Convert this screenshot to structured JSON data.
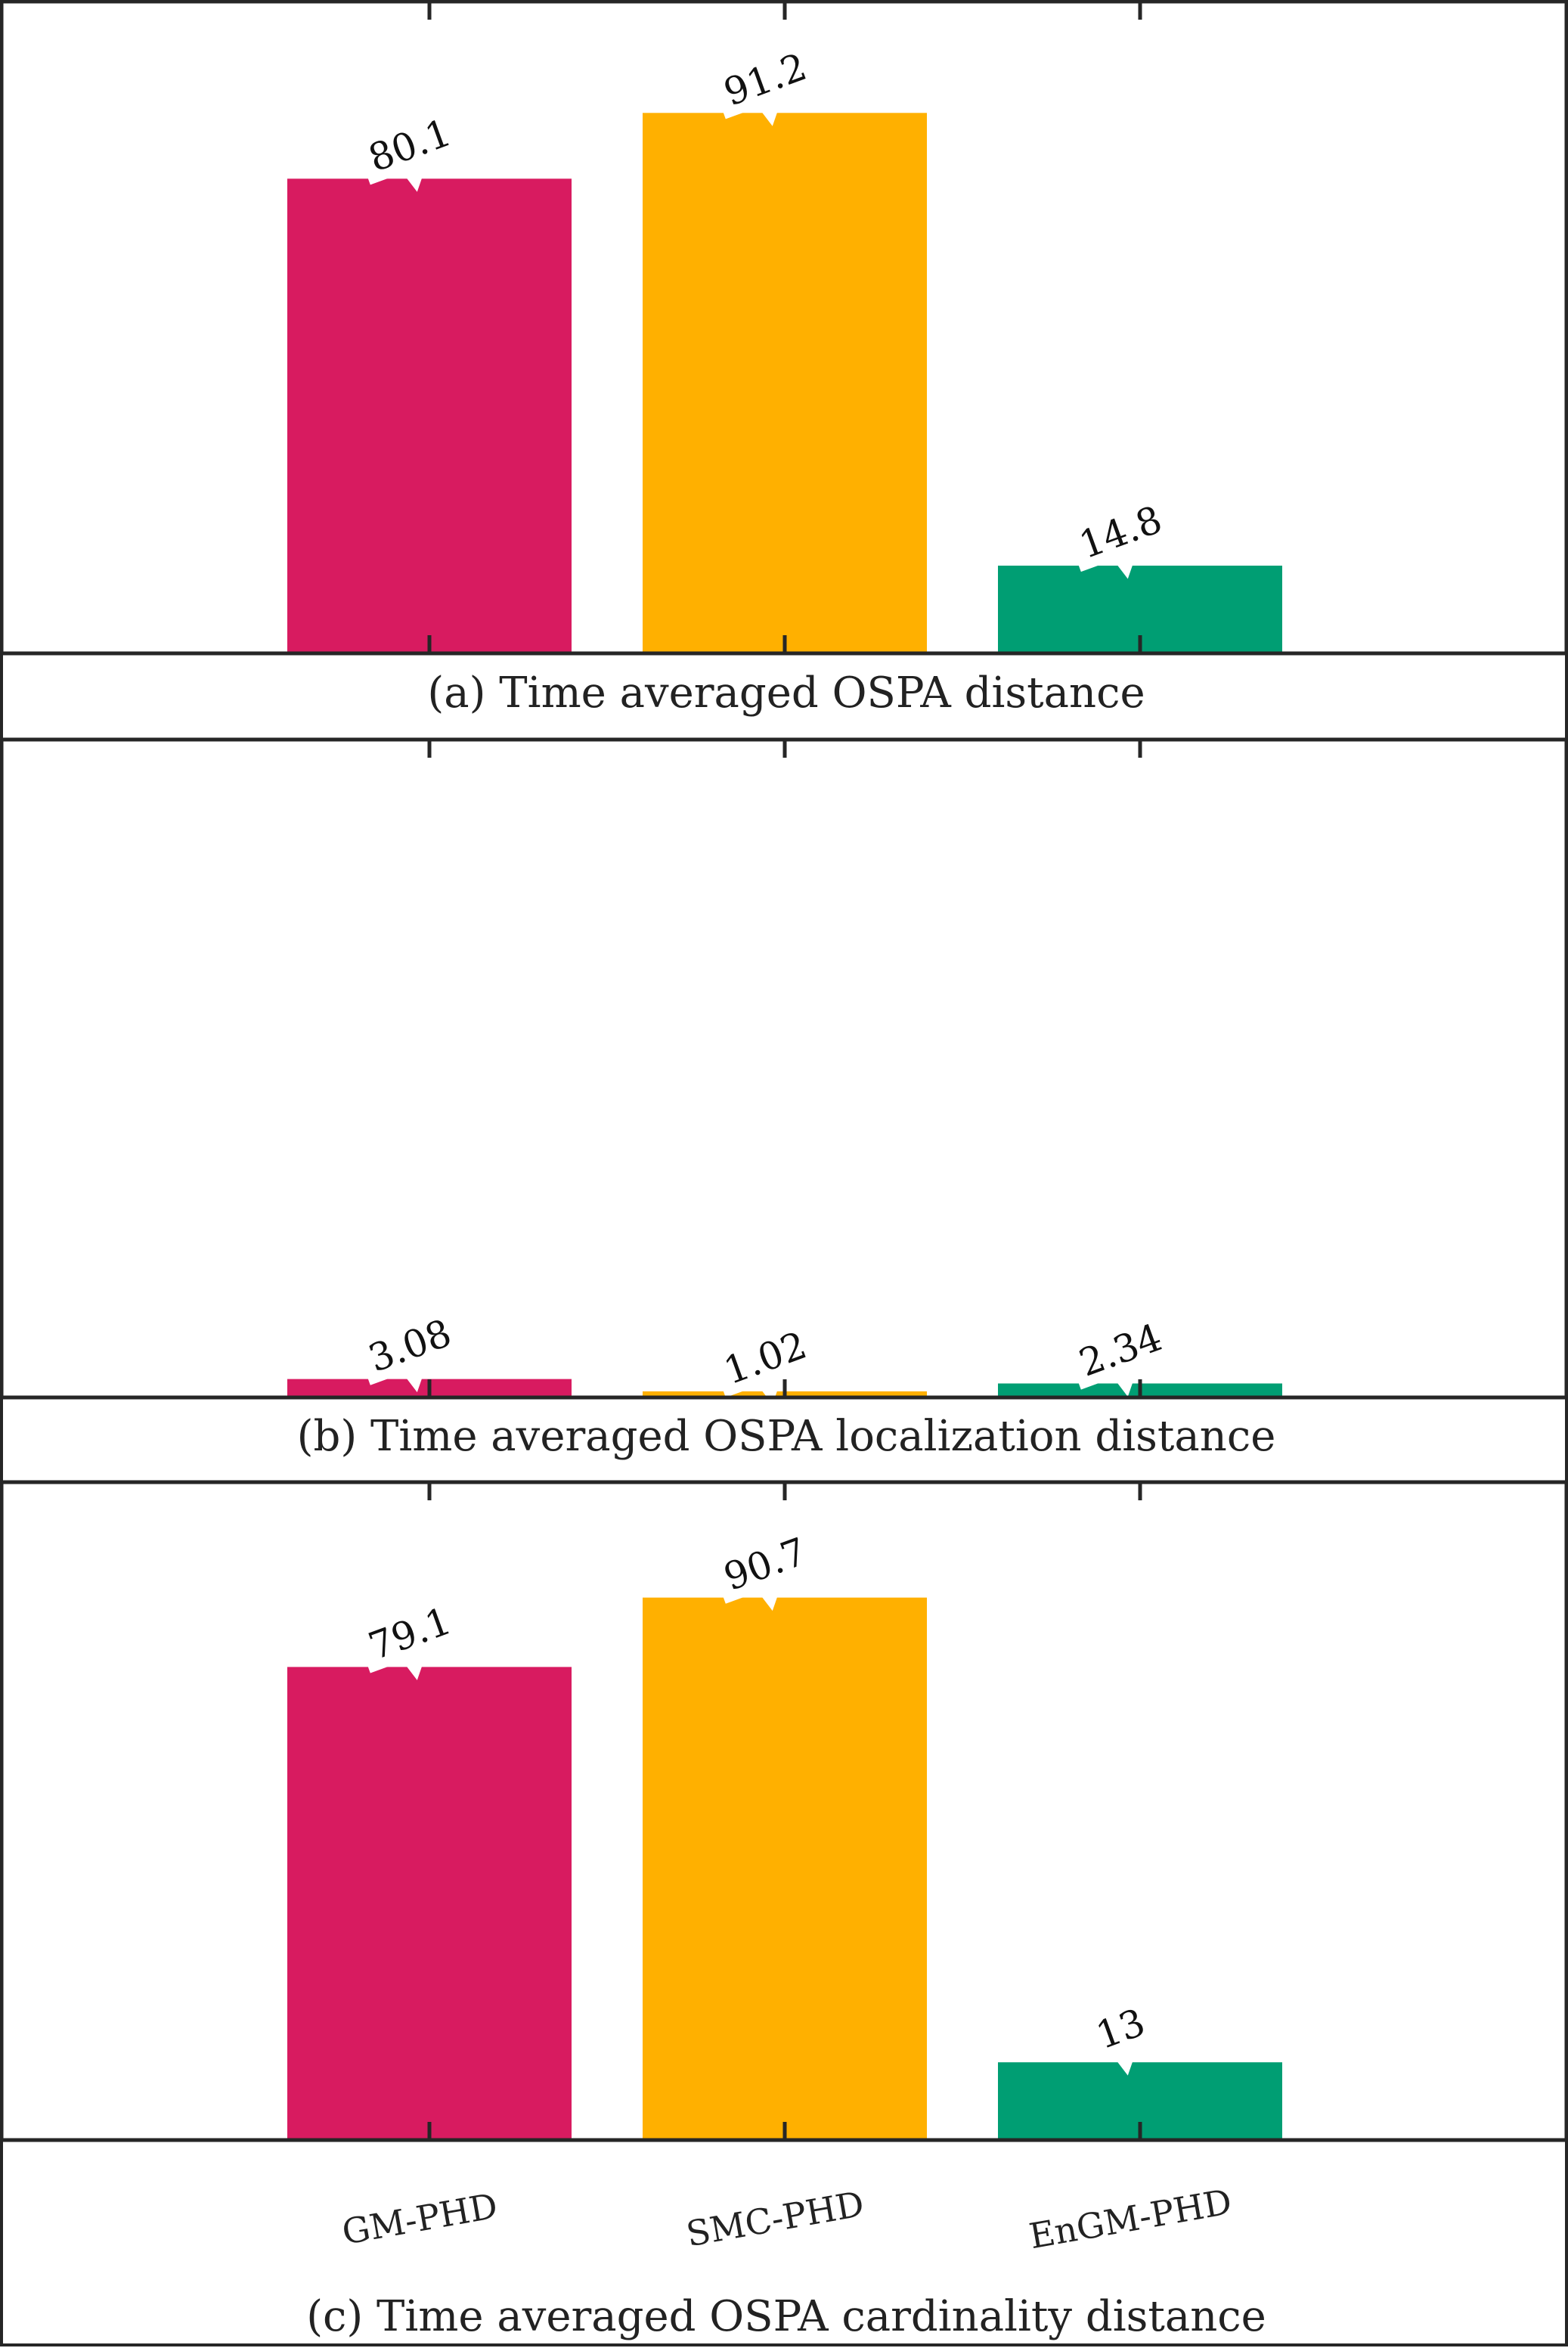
{
  "colors": {
    "GM-PHD": "#D81B60",
    "SMC-PHD": "#FFB000",
    "EnGM-PHD": "#009E73"
  },
  "chart_data": [
    {
      "type": "bar",
      "caption": "(a) Time averaged OSPA distance",
      "categories": [
        "GM-PHD",
        "SMC-PHD",
        "EnGM-PHD"
      ],
      "values": [
        80.1,
        91.2,
        14.8
      ],
      "data_labels": [
        "80.1",
        "91.2",
        "14.8"
      ],
      "ylim": [
        0,
        110
      ],
      "grid": false,
      "xtick_labels_shown": false
    },
    {
      "type": "bar",
      "caption": "(b) Time averaged OSPA localization distance",
      "categories": [
        "GM-PHD",
        "SMC-PHD",
        "EnGM-PHD"
      ],
      "values": [
        3.08,
        1.02,
        2.34
      ],
      "data_labels": [
        "3.08",
        "1.02",
        "2.34"
      ],
      "ylim": [
        0,
        110
      ],
      "grid": false,
      "xtick_labels_shown": false
    },
    {
      "type": "bar",
      "caption": "(c) Time averaged OSPA cardinality distance",
      "categories": [
        "GM-PHD",
        "SMC-PHD",
        "EnGM-PHD"
      ],
      "values": [
        79.1,
        90.7,
        13
      ],
      "data_labels": [
        "79.1",
        "90.7",
        "13"
      ],
      "ylim": [
        0,
        110
      ],
      "grid": false,
      "xtick_labels_shown": true
    }
  ]
}
